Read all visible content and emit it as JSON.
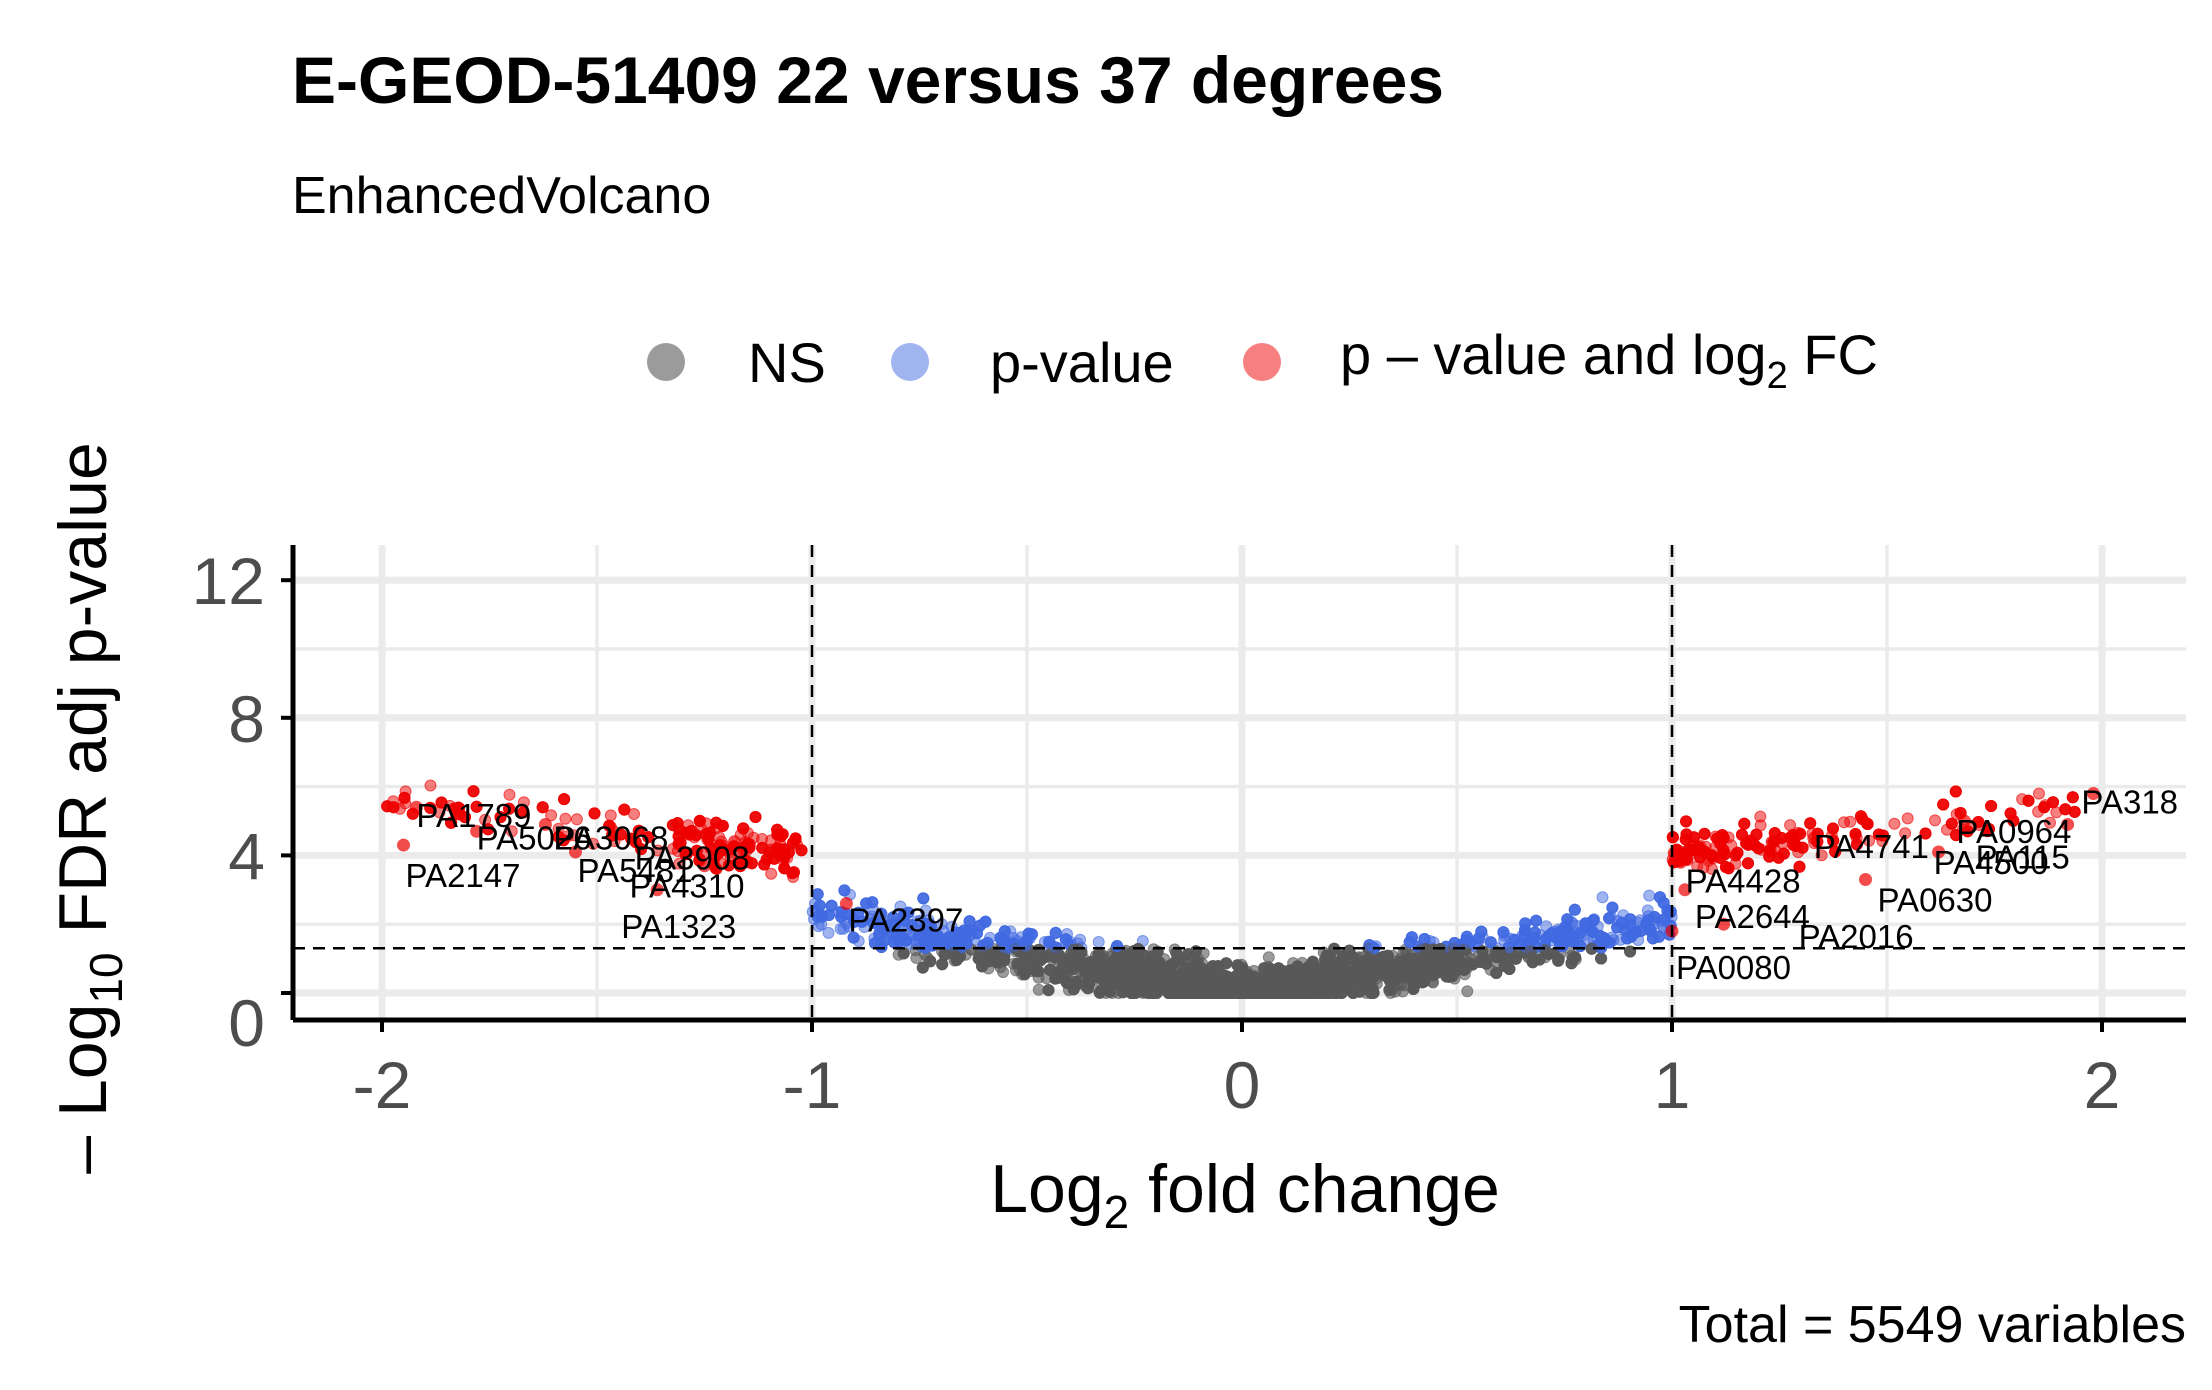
{
  "chart_data": {
    "type": "scatter",
    "title": "E-GEOD-51409 22 versus 37 degrees",
    "subtitle": "EnhancedVolcano",
    "xlabel": "Log2 fold change",
    "xlabel_parts": {
      "pre": "Log",
      "sub": "2",
      "post": " fold change"
    },
    "ylabel": "– Log10 FDR adj p-value",
    "ylabel_parts": {
      "pre": "– Log",
      "sub": "10",
      "post": " FDR adj p-value"
    },
    "caption": "Total = 5549 variables",
    "xlim": [
      -2.2,
      2.2
    ],
    "ylim": [
      -0.5,
      13.0
    ],
    "xticks": [
      -2,
      -1,
      0,
      1,
      2
    ],
    "xtick_labels": [
      "-2",
      "-1",
      "0",
      "1",
      "2"
    ],
    "yticks": [
      0,
      4,
      8,
      12
    ],
    "ytick_labels": [
      "0",
      "4",
      "8",
      "12"
    ],
    "grid": true,
    "legend_position": "top",
    "thresholds": {
      "log2fc": 1.0,
      "neg_log10_p": 1.3
    },
    "legend": [
      {
        "key": "ns",
        "label": "NS",
        "color": "#595959"
      },
      {
        "key": "p",
        "label": "p-value",
        "color": "#4169e1"
      },
      {
        "key": "both",
        "label_parts": {
          "pre": "p – value and log",
          "sub": "2",
          "post": " FC"
        },
        "label": "p – value and log2 FC",
        "color": "#ee0000"
      }
    ],
    "total_points": 5549,
    "labeled_points": [
      {
        "name": "PA1789",
        "x": -1.92,
        "y": 5.4
      },
      {
        "name": "PA5026",
        "x": -1.78,
        "y": 4.7
      },
      {
        "name": "PA2147",
        "x": -1.95,
        "y": 4.3
      },
      {
        "name": "PA3068",
        "x": -1.62,
        "y": 4.9
      },
      {
        "name": "PA5481",
        "x": -1.55,
        "y": 4.1
      },
      {
        "name": "PA3908",
        "x": -1.18,
        "y": 4.4
      },
      {
        "name": "PA4310",
        "x": -1.25,
        "y": 3.7
      },
      {
        "name": "PA1323",
        "x": -1.36,
        "y": 3.0
      },
      {
        "name": "PA2397",
        "x": -0.92,
        "y": 2.6
      },
      {
        "name": "PA4428",
        "x": 1.02,
        "y": 3.8
      },
      {
        "name": "PA2644",
        "x": 1.03,
        "y": 3.0
      },
      {
        "name": "PA2016",
        "x": 1.12,
        "y": 2.0
      },
      {
        "name": "PA0080",
        "x": 1.0,
        "y": 1.8
      },
      {
        "name": "PA4741",
        "x": 1.33,
        "y": 4.5
      },
      {
        "name": "PA0630",
        "x": 1.45,
        "y": 3.3
      },
      {
        "name": "PA0964",
        "x": 1.68,
        "y": 5.0
      },
      {
        "name": "PA4500",
        "x": 1.62,
        "y": 4.1
      },
      {
        "name": "PA318",
        "x": 1.98,
        "y": 5.8
      },
      {
        "name": "PA115",
        "x": 1.92,
        "y": 4.9
      }
    ]
  }
}
